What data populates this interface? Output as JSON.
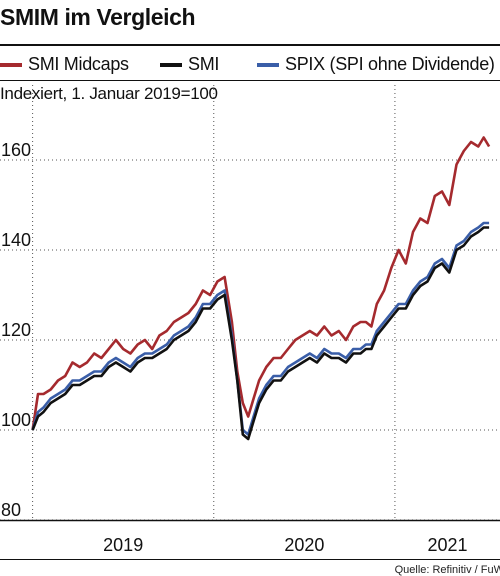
{
  "header": {
    "title": "SMIM im Vergleich",
    "subtitle": "Indexiert, 1. Januar 2019=100",
    "source": "Quelle: Refinitiv / FuW"
  },
  "legend": [
    {
      "label": "SMI Midcaps",
      "color": "#a52a2e"
    },
    {
      "label": "SMI",
      "color": "#111111"
    },
    {
      "label": "SPIX (SPI ohne Dividende)",
      "color": "#3a5ea8"
    }
  ],
  "chart_data": {
    "type": "line",
    "title": "SMIM im Vergleich",
    "subtitle": "Indexiert, 1. Januar 2019=100",
    "ylim": [
      80,
      170
    ],
    "yticks": [
      80,
      100,
      120,
      140,
      160
    ],
    "xlim": [
      2018.82,
      2021.58
    ],
    "x_categories": [
      "2019",
      "2020",
      "2021"
    ],
    "x_boundaries": [
      2019,
      2020,
      2021
    ],
    "grid": "horizontal dotted, vertical at year boundaries",
    "series": [
      {
        "name": "SMI Midcaps",
        "color": "#a52a2e",
        "x": [
          2019.0,
          2019.03,
          2019.06,
          2019.1,
          2019.14,
          2019.18,
          2019.22,
          2019.26,
          2019.3,
          2019.34,
          2019.38,
          2019.42,
          2019.46,
          2019.5,
          2019.54,
          2019.58,
          2019.62,
          2019.66,
          2019.7,
          2019.74,
          2019.78,
          2019.82,
          2019.86,
          2019.9,
          2019.94,
          2019.98,
          2020.02,
          2020.06,
          2020.1,
          2020.13,
          2020.16,
          2020.19,
          2020.22,
          2020.25,
          2020.29,
          2020.33,
          2020.37,
          2020.41,
          2020.45,
          2020.49,
          2020.53,
          2020.57,
          2020.61,
          2020.65,
          2020.69,
          2020.73,
          2020.77,
          2020.81,
          2020.84,
          2020.87,
          2020.9,
          2020.94,
          2020.98,
          2021.02,
          2021.06,
          2021.1,
          2021.14,
          2021.18,
          2021.22,
          2021.26,
          2021.3,
          2021.34,
          2021.38,
          2021.42,
          2021.46,
          2021.49,
          2021.52
        ],
        "values": [
          100,
          108,
          108,
          109,
          111,
          112,
          115,
          114,
          115,
          117,
          116,
          118,
          120,
          118,
          117,
          119,
          120,
          118,
          121,
          122,
          124,
          125,
          126,
          128,
          131,
          130,
          133,
          134,
          124,
          113,
          106,
          103,
          107,
          111,
          114,
          116,
          116,
          118,
          120,
          121,
          122,
          121,
          123,
          121,
          122,
          120,
          123,
          124,
          124,
          123,
          128,
          131,
          136,
          140,
          137,
          144,
          147,
          146,
          152,
          153,
          150,
          159,
          162,
          164,
          163,
          165,
          163
        ]
      },
      {
        "name": "SMI",
        "color": "#111111",
        "x": [
          2019.0,
          2019.03,
          2019.06,
          2019.1,
          2019.14,
          2019.18,
          2019.22,
          2019.26,
          2019.3,
          2019.34,
          2019.38,
          2019.42,
          2019.46,
          2019.5,
          2019.54,
          2019.58,
          2019.62,
          2019.66,
          2019.7,
          2019.74,
          2019.78,
          2019.82,
          2019.86,
          2019.9,
          2019.94,
          2019.98,
          2020.02,
          2020.06,
          2020.1,
          2020.13,
          2020.16,
          2020.19,
          2020.22,
          2020.25,
          2020.29,
          2020.33,
          2020.37,
          2020.41,
          2020.45,
          2020.49,
          2020.53,
          2020.57,
          2020.61,
          2020.65,
          2020.69,
          2020.73,
          2020.77,
          2020.81,
          2020.84,
          2020.87,
          2020.9,
          2020.94,
          2020.98,
          2021.02,
          2021.06,
          2021.1,
          2021.14,
          2021.18,
          2021.22,
          2021.26,
          2021.3,
          2021.34,
          2021.38,
          2021.42,
          2021.46,
          2021.49,
          2021.52
        ],
        "values": [
          100,
          103,
          104,
          106,
          107,
          108,
          110,
          110,
          111,
          112,
          112,
          114,
          115,
          114,
          113,
          115,
          116,
          116,
          117,
          118,
          120,
          121,
          122,
          124,
          127,
          127,
          129,
          130,
          120,
          111,
          99,
          98,
          102,
          106,
          109,
          111,
          111,
          113,
          114,
          115,
          116,
          115,
          117,
          116,
          116,
          115,
          117,
          117,
          118,
          118,
          121,
          123,
          125,
          127,
          127,
          130,
          132,
          133,
          136,
          137,
          135,
          140,
          141,
          143,
          144,
          145,
          145
        ]
      },
      {
        "name": "SPIX (SPI ohne Dividende)",
        "color": "#3a5ea8",
        "x": [
          2019.0,
          2019.03,
          2019.06,
          2019.1,
          2019.14,
          2019.18,
          2019.22,
          2019.26,
          2019.3,
          2019.34,
          2019.38,
          2019.42,
          2019.46,
          2019.5,
          2019.54,
          2019.58,
          2019.62,
          2019.66,
          2019.7,
          2019.74,
          2019.78,
          2019.82,
          2019.86,
          2019.9,
          2019.94,
          2019.98,
          2020.02,
          2020.06,
          2020.1,
          2020.13,
          2020.16,
          2020.19,
          2020.22,
          2020.25,
          2020.29,
          2020.33,
          2020.37,
          2020.41,
          2020.45,
          2020.49,
          2020.53,
          2020.57,
          2020.61,
          2020.65,
          2020.69,
          2020.73,
          2020.77,
          2020.81,
          2020.84,
          2020.87,
          2020.9,
          2020.94,
          2020.98,
          2021.02,
          2021.06,
          2021.1,
          2021.14,
          2021.18,
          2021.22,
          2021.26,
          2021.3,
          2021.34,
          2021.38,
          2021.42,
          2021.46,
          2021.49,
          2021.52
        ],
        "values": [
          100,
          104,
          105,
          107,
          108,
          109,
          111,
          111,
          112,
          113,
          113,
          115,
          116,
          115,
          114,
          116,
          117,
          117,
          118,
          119,
          121,
          122,
          123,
          125,
          128,
          128,
          130,
          131,
          121,
          111,
          100,
          99,
          103,
          107,
          110,
          112,
          112,
          114,
          115,
          116,
          117,
          116,
          118,
          117,
          117,
          116,
          118,
          118,
          119,
          119,
          122,
          124,
          126,
          128,
          128,
          131,
          133,
          134,
          137,
          138,
          136,
          141,
          142,
          144,
          145,
          146,
          146
        ]
      }
    ]
  }
}
